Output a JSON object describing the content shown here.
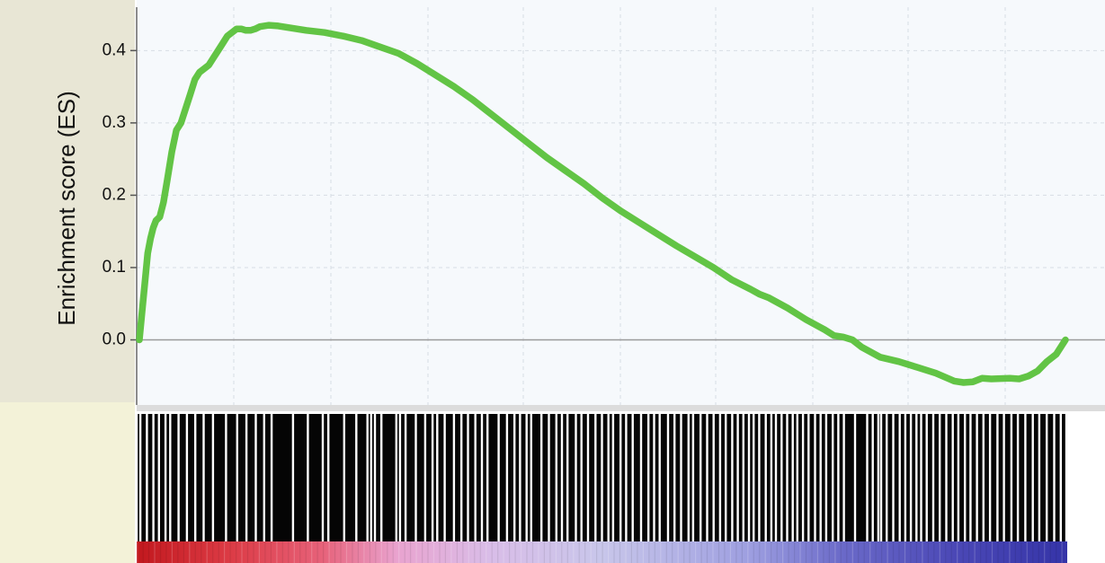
{
  "chart_data": {
    "type": "line",
    "ylabel": "Enrichment score (ES)",
    "xlabel": "",
    "title": "",
    "ylim": [
      -0.09,
      0.46
    ],
    "xlim": [
      0,
      1
    ],
    "yticks": [
      0.0,
      0.1,
      0.2,
      0.3,
      0.4
    ],
    "ytick_labels": [
      "0.0",
      "0.1",
      "0.2",
      "0.3",
      "0.4"
    ],
    "grid": true,
    "zero_line": true,
    "series": [
      {
        "x": [
          0.0,
          0.003,
          0.006,
          0.009,
          0.012,
          0.015,
          0.018,
          0.022,
          0.026,
          0.03,
          0.035,
          0.04,
          0.045,
          0.05,
          0.055,
          0.06,
          0.065,
          0.07,
          0.075,
          0.08,
          0.085,
          0.09,
          0.095,
          0.1,
          0.105,
          0.11,
          0.115,
          0.12,
          0.125,
          0.13,
          0.14,
          0.15,
          0.16,
          0.17,
          0.18,
          0.2,
          0.22,
          0.24,
          0.26,
          0.28,
          0.3,
          0.32,
          0.34,
          0.36,
          0.38,
          0.4,
          0.42,
          0.44,
          0.46,
          0.48,
          0.5,
          0.52,
          0.54,
          0.56,
          0.58,
          0.6,
          0.62,
          0.64,
          0.66,
          0.67,
          0.68,
          0.7,
          0.72,
          0.74,
          0.75,
          0.76,
          0.77,
          0.78,
          0.8,
          0.82,
          0.84,
          0.86,
          0.88,
          0.89,
          0.9,
          0.91,
          0.92,
          0.94,
          0.95,
          0.96,
          0.97,
          0.98,
          0.99,
          1.0
        ],
        "y": [
          0.0,
          0.04,
          0.08,
          0.12,
          0.14,
          0.155,
          0.165,
          0.17,
          0.19,
          0.22,
          0.26,
          0.29,
          0.3,
          0.32,
          0.34,
          0.36,
          0.37,
          0.375,
          0.38,
          0.39,
          0.4,
          0.41,
          0.42,
          0.425,
          0.43,
          0.43,
          0.428,
          0.428,
          0.43,
          0.433,
          0.435,
          0.434,
          0.432,
          0.43,
          0.428,
          0.425,
          0.42,
          0.414,
          0.405,
          0.396,
          0.382,
          0.366,
          0.35,
          0.332,
          0.312,
          0.292,
          0.272,
          0.252,
          0.234,
          0.216,
          0.196,
          0.178,
          0.162,
          0.146,
          0.13,
          0.115,
          0.1,
          0.083,
          0.07,
          0.063,
          0.058,
          0.044,
          0.028,
          0.014,
          0.006,
          0.004,
          0.0,
          -0.01,
          -0.024,
          -0.03,
          -0.038,
          -0.046,
          -0.057,
          -0.059,
          -0.058,
          -0.053,
          -0.054,
          -0.053,
          -0.054,
          -0.05,
          -0.043,
          -0.03,
          -0.02,
          0.0
        ]
      }
    ],
    "line_color": "#62c445",
    "hit_strip": {
      "positions": [
        0.0,
        0.004,
        0.011,
        0.018,
        0.024,
        0.031,
        0.036,
        0.045,
        0.054,
        0.063,
        0.072,
        0.082,
        0.096,
        0.108,
        0.118,
        0.128,
        0.137,
        0.145,
        0.168,
        0.184,
        0.2,
        0.206,
        0.223,
        0.236,
        0.248,
        0.252,
        0.256,
        0.263,
        0.279,
        0.283,
        0.289,
        0.3,
        0.31,
        0.318,
        0.323,
        0.331,
        0.341,
        0.349,
        0.356,
        0.364,
        0.371,
        0.377,
        0.389,
        0.398,
        0.406,
        0.412,
        0.419,
        0.424,
        0.435,
        0.443,
        0.451,
        0.457,
        0.463,
        0.472,
        0.478,
        0.485,
        0.493,
        0.5,
        0.507,
        0.512,
        0.52,
        0.526,
        0.533,
        0.542,
        0.55,
        0.556,
        0.562,
        0.571,
        0.578,
        0.585,
        0.593,
        0.598,
        0.606,
        0.613,
        0.62,
        0.627,
        0.633,
        0.64,
        0.646,
        0.652,
        0.658,
        0.663,
        0.669,
        0.676,
        0.682,
        0.687,
        0.693,
        0.699,
        0.705,
        0.71,
        0.716,
        0.722,
        0.729,
        0.735,
        0.741,
        0.748,
        0.754,
        0.76,
        0.772,
        0.785,
        0.791,
        0.797,
        0.8,
        0.806,
        0.813,
        0.82,
        0.826,
        0.832,
        0.838,
        0.843,
        0.849,
        0.856,
        0.863,
        0.87,
        0.877,
        0.883,
        0.89,
        0.896,
        0.903,
        0.91,
        0.917,
        0.925,
        0.932,
        0.94,
        0.947,
        0.955,
        0.963,
        0.97,
        0.978,
        0.986,
        0.993,
        0.999
      ]
    },
    "rank_gradient": {
      "colors": [
        "#c2181e",
        "#dc3b45",
        "#e7627a",
        "#e9a3cf",
        "#d9bde8",
        "#c8c6ea",
        "#9d9ee0",
        "#6a69c8",
        "#4b48b6",
        "#3534a8"
      ],
      "stops": [
        0.0,
        0.1,
        0.2,
        0.28,
        0.38,
        0.5,
        0.66,
        0.76,
        0.88,
        1.0
      ]
    }
  }
}
